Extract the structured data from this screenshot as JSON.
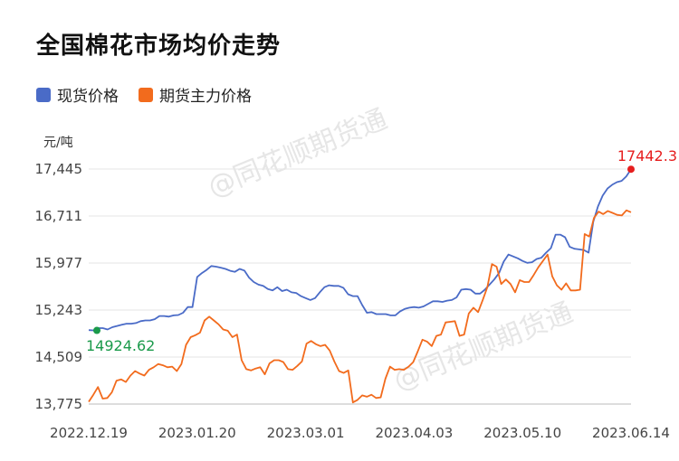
{
  "title": "全国棉花市场均价走势",
  "watermark": "@同花顺期货通",
  "chart_data": {
    "type": "line",
    "unit": "元/吨",
    "ylim": [
      13775,
      17445
    ],
    "yticks": [
      "17,445",
      "16,711",
      "15,977",
      "15,243",
      "14,509",
      "13,775"
    ],
    "ytick_values": [
      17445,
      16711,
      15977,
      15243,
      14509,
      13775
    ],
    "xticks": [
      "2022.12.19",
      "2023.01.20",
      "2023.03.01",
      "2023.04.03",
      "2023.05.10",
      "2023.06.14"
    ],
    "grid": true,
    "legend_position": "top-left",
    "annotations": {
      "start": "14924.62",
      "end": "17442.3"
    },
    "series": [
      {
        "name": "现货价格",
        "color": "#4a6bc7",
        "values": [
          14930,
          14925,
          14960,
          14960,
          14940,
          14975,
          14995,
          15015,
          15030,
          15030,
          15040,
          15070,
          15080,
          15080,
          15100,
          15150,
          15150,
          15140,
          15160,
          15165,
          15200,
          15290,
          15290,
          15760,
          15820,
          15870,
          15930,
          15920,
          15905,
          15885,
          15855,
          15840,
          15885,
          15860,
          15750,
          15680,
          15640,
          15620,
          15570,
          15550,
          15600,
          15540,
          15560,
          15520,
          15510,
          15460,
          15430,
          15400,
          15430,
          15520,
          15600,
          15630,
          15620,
          15620,
          15590,
          15490,
          15460,
          15460,
          15320,
          15200,
          15210,
          15180,
          15180,
          15180,
          15160,
          15160,
          15220,
          15260,
          15280,
          15290,
          15280,
          15300,
          15340,
          15380,
          15380,
          15370,
          15390,
          15400,
          15440,
          15560,
          15570,
          15560,
          15500,
          15500,
          15560,
          15640,
          15720,
          15820,
          16000,
          16110,
          16080,
          16050,
          16010,
          15980,
          15990,
          16040,
          16060,
          16140,
          16210,
          16420,
          16420,
          16380,
          16230,
          16200,
          16190,
          16180,
          16140,
          16620,
          16860,
          17030,
          17140,
          17200,
          17240,
          17260,
          17330,
          17442.3
        ]
      },
      {
        "name": "期货主力价格",
        "color": "#f26b1d",
        "values": [
          13810,
          13920,
          14040,
          13860,
          13870,
          13960,
          14140,
          14160,
          14120,
          14220,
          14290,
          14250,
          14220,
          14310,
          14350,
          14400,
          14380,
          14350,
          14360,
          14290,
          14400,
          14700,
          14820,
          14850,
          14890,
          15080,
          15140,
          15080,
          15020,
          14940,
          14920,
          14820,
          14860,
          14460,
          14320,
          14300,
          14330,
          14350,
          14240,
          14410,
          14460,
          14460,
          14430,
          14320,
          14310,
          14370,
          14440,
          14720,
          14760,
          14710,
          14680,
          14700,
          14610,
          14440,
          14290,
          14260,
          14300,
          13800,
          13840,
          13910,
          13890,
          13920,
          13870,
          13880,
          14170,
          14360,
          14310,
          14320,
          14310,
          14360,
          14430,
          14600,
          14780,
          14750,
          14680,
          14840,
          14860,
          15050,
          15060,
          15070,
          14840,
          14860,
          15190,
          15280,
          15210,
          15400,
          15600,
          15960,
          15920,
          15650,
          15720,
          15650,
          15520,
          15710,
          15680,
          15680,
          15790,
          15910,
          16010,
          16110,
          15770,
          15630,
          15560,
          15660,
          15550,
          15550,
          15560,
          16430,
          16390,
          16680,
          16780,
          16740,
          16790,
          16760,
          16730,
          16720,
          16800,
          16770
        ]
      }
    ]
  }
}
